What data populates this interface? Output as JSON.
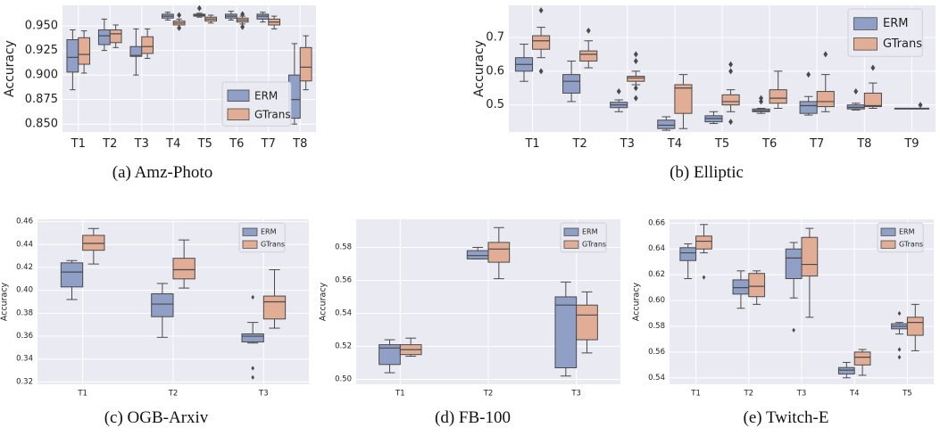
{
  "colors": {
    "erm": "#8f9fc6",
    "gtrans": "#e2ad95",
    "bg": "#eaeaf2",
    "grid": "#ffffff",
    "median": "#4a4a4a",
    "text": "#222222"
  },
  "chart_data": [
    {
      "id": "amz",
      "type": "box",
      "caption": "(a) Amz-Photo",
      "ylabel": "Accuracy",
      "categories": [
        "T1",
        "T2",
        "T3",
        "T4",
        "T5",
        "T6",
        "T7",
        "T8"
      ],
      "yticks": [
        "0.850",
        "0.875",
        "0.900",
        "0.925",
        "0.950"
      ],
      "ylim": [
        0.842,
        0.971
      ],
      "grid": true,
      "legend": {
        "position": "center-right",
        "entries": [
          "ERM",
          "GTrans"
        ]
      },
      "series": [
        {
          "name": "ERM",
          "boxes": [
            {
              "whislo": 0.885,
              "q1": 0.903,
              "med": 0.918,
              "q3": 0.936,
              "whishi": 0.946,
              "fliers": []
            },
            {
              "whislo": 0.925,
              "q1": 0.931,
              "med": 0.94,
              "q3": 0.946,
              "whishi": 0.957,
              "fliers": []
            },
            {
              "whislo": 0.9,
              "q1": 0.919,
              "med": 0.92,
              "q3": 0.929,
              "whishi": 0.947,
              "fliers": []
            },
            {
              "whislo": 0.956,
              "q1": 0.958,
              "med": 0.96,
              "q3": 0.962,
              "whishi": 0.964,
              "fliers": []
            },
            {
              "whislo": 0.959,
              "q1": 0.96,
              "med": 0.961,
              "q3": 0.962,
              "whishi": 0.963,
              "fliers": [
                0.968
              ]
            },
            {
              "whislo": 0.956,
              "q1": 0.958,
              "med": 0.96,
              "q3": 0.962,
              "whishi": 0.965,
              "fliers": []
            },
            {
              "whislo": 0.954,
              "q1": 0.957,
              "med": 0.96,
              "q3": 0.962,
              "whishi": 0.964,
              "fliers": []
            },
            {
              "whislo": 0.85,
              "q1": 0.856,
              "med": 0.875,
              "q3": 0.9,
              "whishi": 0.932,
              "fliers": []
            }
          ]
        },
        {
          "name": "GTrans",
          "boxes": [
            {
              "whislo": 0.902,
              "q1": 0.911,
              "med": 0.921,
              "q3": 0.938,
              "whishi": 0.945,
              "fliers": []
            },
            {
              "whislo": 0.928,
              "q1": 0.933,
              "med": 0.942,
              "q3": 0.946,
              "whishi": 0.951,
              "fliers": []
            },
            {
              "whislo": 0.917,
              "q1": 0.922,
              "med": 0.929,
              "q3": 0.939,
              "whishi": 0.947,
              "fliers": []
            },
            {
              "whislo": 0.951,
              "q1": 0.951,
              "med": 0.953,
              "q3": 0.955,
              "whishi": 0.957,
              "fliers": [
                0.948,
                0.961
              ]
            },
            {
              "whislo": 0.953,
              "q1": 0.955,
              "med": 0.957,
              "q3": 0.959,
              "whishi": 0.961,
              "fliers": []
            },
            {
              "whislo": 0.952,
              "q1": 0.954,
              "med": 0.956,
              "q3": 0.958,
              "whishi": 0.96,
              "fliers": [
                0.949,
                0.962
              ]
            },
            {
              "whislo": 0.947,
              "q1": 0.951,
              "med": 0.954,
              "q3": 0.957,
              "whishi": 0.96,
              "fliers": []
            },
            {
              "whislo": 0.885,
              "q1": 0.894,
              "med": 0.908,
              "q3": 0.928,
              "whishi": 0.94,
              "fliers": []
            }
          ]
        }
      ]
    },
    {
      "id": "elliptic",
      "type": "box",
      "caption": "(b) Elliptic",
      "ylabel": "Accuracy",
      "categories": [
        "T1",
        "T2",
        "T3",
        "T4",
        "T5",
        "T6",
        "T7",
        "T8",
        "T9"
      ],
      "yticks": [
        "0.5",
        "0.6",
        "0.7"
      ],
      "ylim": [
        0.42,
        0.795
      ],
      "grid": true,
      "legend": {
        "position": "top-right",
        "entries": [
          "ERM",
          "GTrans"
        ]
      },
      "series": [
        {
          "name": "ERM",
          "boxes": [
            {
              "whislo": 0.57,
              "q1": 0.6,
              "med": 0.62,
              "q3": 0.64,
              "whishi": 0.68,
              "fliers": []
            },
            {
              "whislo": 0.51,
              "q1": 0.535,
              "med": 0.57,
              "q3": 0.59,
              "whishi": 0.63,
              "fliers": []
            },
            {
              "whislo": 0.48,
              "q1": 0.492,
              "med": 0.5,
              "q3": 0.508,
              "whishi": 0.515,
              "fliers": [
                0.54
              ]
            },
            {
              "whislo": 0.425,
              "q1": 0.43,
              "med": 0.44,
              "q3": 0.455,
              "whishi": 0.465,
              "fliers": []
            },
            {
              "whislo": 0.445,
              "q1": 0.45,
              "med": 0.46,
              "q3": 0.468,
              "whishi": 0.48,
              "fliers": []
            },
            {
              "whislo": 0.475,
              "q1": 0.48,
              "med": 0.483,
              "q3": 0.488,
              "whishi": 0.49,
              "fliers": [
                0.51,
                0.52
              ]
            },
            {
              "whislo": 0.47,
              "q1": 0.475,
              "med": 0.498,
              "q3": 0.51,
              "whishi": 0.525,
              "fliers": [
                0.59
              ]
            },
            {
              "whislo": 0.485,
              "q1": 0.488,
              "med": 0.493,
              "q3": 0.5,
              "whishi": 0.505,
              "fliers": [
                0.54
              ]
            },
            {
              "whislo": 0.49,
              "q1": 0.49,
              "med": 0.49,
              "q3": 0.49,
              "whishi": 0.49,
              "fliers": []
            }
          ]
        },
        {
          "name": "GTrans",
          "boxes": [
            {
              "whislo": 0.64,
              "q1": 0.665,
              "med": 0.69,
              "q3": 0.705,
              "whishi": 0.73,
              "fliers": [
                0.6,
                0.78
              ]
            },
            {
              "whislo": 0.61,
              "q1": 0.63,
              "med": 0.65,
              "q3": 0.66,
              "whishi": 0.69,
              "fliers": [
                0.72
              ]
            },
            {
              "whislo": 0.56,
              "q1": 0.57,
              "med": 0.58,
              "q3": 0.585,
              "whishi": 0.6,
              "fliers": [
                0.52,
                0.55,
                0.63,
                0.65
              ]
            },
            {
              "whislo": 0.43,
              "q1": 0.475,
              "med": 0.55,
              "q3": 0.56,
              "whishi": 0.59,
              "fliers": []
            },
            {
              "whislo": 0.48,
              "q1": 0.5,
              "med": 0.51,
              "q3": 0.53,
              "whishi": 0.545,
              "fliers": [
                0.45,
                0.6,
                0.62
              ]
            },
            {
              "whislo": 0.49,
              "q1": 0.505,
              "med": 0.52,
              "q3": 0.545,
              "whishi": 0.6,
              "fliers": []
            },
            {
              "whislo": 0.48,
              "q1": 0.495,
              "med": 0.51,
              "q3": 0.54,
              "whishi": 0.59,
              "fliers": [
                0.65
              ]
            },
            {
              "whislo": 0.49,
              "q1": 0.495,
              "med": 0.498,
              "q3": 0.535,
              "whishi": 0.565,
              "fliers": [
                0.61
              ]
            },
            {
              "whislo": 0.49,
              "q1": 0.49,
              "med": 0.49,
              "q3": 0.49,
              "whishi": 0.49,
              "fliers": [
                0.5
              ]
            }
          ]
        }
      ]
    },
    {
      "id": "arxiv",
      "type": "box",
      "caption": "(c) OGB-Arxiv",
      "ylabel": "Accuracy",
      "categories": [
        "T1",
        "T2",
        "T3"
      ],
      "yticks": [
        "0.32",
        "0.34",
        "0.36",
        "0.38",
        "0.40",
        "0.42",
        "0.44",
        "0.46"
      ],
      "ylim": [
        0.318,
        0.462
      ],
      "grid": true,
      "legend": {
        "position": "top-right",
        "entries": [
          "ERM",
          "GTrans"
        ]
      },
      "series": [
        {
          "name": "ERM",
          "boxes": [
            {
              "whislo": 0.392,
              "q1": 0.403,
              "med": 0.416,
              "q3": 0.424,
              "whishi": 0.426,
              "fliers": []
            },
            {
              "whislo": 0.359,
              "q1": 0.377,
              "med": 0.388,
              "q3": 0.397,
              "whishi": 0.406,
              "fliers": []
            },
            {
              "whislo": 0.354,
              "q1": 0.355,
              "med": 0.36,
              "q3": 0.362,
              "whishi": 0.372,
              "fliers": [
                0.324,
                0.332,
                0.394
              ]
            }
          ]
        },
        {
          "name": "GTrans",
          "boxes": [
            {
              "whislo": 0.423,
              "q1": 0.435,
              "med": 0.441,
              "q3": 0.448,
              "whishi": 0.454,
              "fliers": []
            },
            {
              "whislo": 0.402,
              "q1": 0.41,
              "med": 0.418,
              "q3": 0.428,
              "whishi": 0.444,
              "fliers": []
            },
            {
              "whislo": 0.367,
              "q1": 0.375,
              "med": 0.39,
              "q3": 0.395,
              "whishi": 0.418,
              "fliers": []
            }
          ]
        }
      ]
    },
    {
      "id": "fb100",
      "type": "box",
      "caption": "(d) FB-100",
      "ylabel": "Accuracy",
      "categories": [
        "T1",
        "T2",
        "T3"
      ],
      "yticks": [
        "0.50",
        "0.52",
        "0.54",
        "0.56",
        "0.58"
      ],
      "ylim": [
        0.497,
        0.597
      ],
      "grid": true,
      "legend": {
        "position": "top-right",
        "entries": [
          "ERM",
          "GTrans"
        ]
      },
      "series": [
        {
          "name": "ERM",
          "boxes": [
            {
              "whislo": 0.504,
              "q1": 0.509,
              "med": 0.519,
              "q3": 0.521,
              "whishi": 0.524,
              "fliers": []
            },
            {
              "whislo": 0.573,
              "q1": 0.573,
              "med": 0.575,
              "q3": 0.578,
              "whishi": 0.58,
              "fliers": []
            },
            {
              "whislo": 0.502,
              "q1": 0.507,
              "med": 0.545,
              "q3": 0.55,
              "whishi": 0.559,
              "fliers": []
            }
          ]
        },
        {
          "name": "GTrans",
          "boxes": [
            {
              "whislo": 0.514,
              "q1": 0.515,
              "med": 0.518,
              "q3": 0.521,
              "whishi": 0.525,
              "fliers": []
            },
            {
              "whislo": 0.561,
              "q1": 0.571,
              "med": 0.579,
              "q3": 0.583,
              "whishi": 0.592,
              "fliers": []
            },
            {
              "whislo": 0.516,
              "q1": 0.524,
              "med": 0.539,
              "q3": 0.545,
              "whishi": 0.553,
              "fliers": []
            }
          ]
        }
      ]
    },
    {
      "id": "twitch",
      "type": "box",
      "caption": "(e) Twitch-E",
      "ylabel": "Accuracy",
      "categories": [
        "T1",
        "T2",
        "T3",
        "T4",
        "T5"
      ],
      "yticks": [
        "0.54",
        "0.56",
        "0.58",
        "0.60",
        "0.62",
        "0.64",
        "0.66"
      ],
      "ylim": [
        0.535,
        0.663
      ],
      "grid": true,
      "legend": {
        "position": "top-right",
        "entries": [
          "ERM",
          "GTrans"
        ]
      },
      "series": [
        {
          "name": "ERM",
          "boxes": [
            {
              "whislo": 0.617,
              "q1": 0.631,
              "med": 0.637,
              "q3": 0.641,
              "whishi": 0.644,
              "fliers": []
            },
            {
              "whislo": 0.594,
              "q1": 0.605,
              "med": 0.61,
              "q3": 0.616,
              "whishi": 0.623,
              "fliers": []
            },
            {
              "whislo": 0.602,
              "q1": 0.617,
              "med": 0.633,
              "q3": 0.64,
              "whishi": 0.645,
              "fliers": [
                0.577
              ]
            },
            {
              "whislo": 0.54,
              "q1": 0.543,
              "med": 0.546,
              "q3": 0.548,
              "whishi": 0.552,
              "fliers": []
            },
            {
              "whislo": 0.574,
              "q1": 0.578,
              "med": 0.58,
              "q3": 0.582,
              "whishi": 0.583,
              "fliers": [
                0.556,
                0.562,
                0.59
              ]
            }
          ]
        },
        {
          "name": "GTrans",
          "boxes": [
            {
              "whislo": 0.637,
              "q1": 0.64,
              "med": 0.646,
              "q3": 0.65,
              "whishi": 0.659,
              "fliers": [
                0.618
              ]
            },
            {
              "whislo": 0.597,
              "q1": 0.603,
              "med": 0.611,
              "q3": 0.621,
              "whishi": 0.623,
              "fliers": []
            },
            {
              "whislo": 0.587,
              "q1": 0.619,
              "med": 0.628,
              "q3": 0.649,
              "whishi": 0.656,
              "fliers": []
            },
            {
              "whislo": 0.542,
              "q1": 0.55,
              "med": 0.556,
              "q3": 0.56,
              "whishi": 0.562,
              "fliers": []
            },
            {
              "whislo": 0.561,
              "q1": 0.573,
              "med": 0.583,
              "q3": 0.587,
              "whishi": 0.597,
              "fliers": []
            }
          ]
        }
      ]
    }
  ]
}
